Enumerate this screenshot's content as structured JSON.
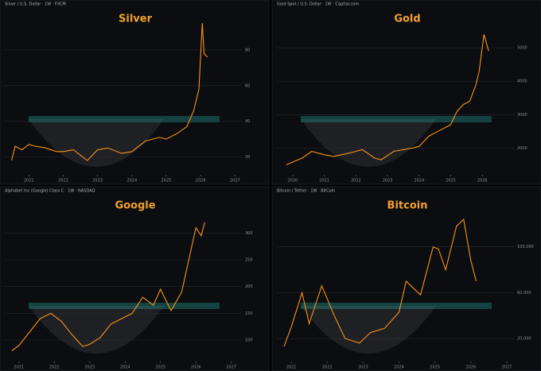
{
  "chart_data": [
    {
      "type": "line",
      "title": "Silver",
      "subtitle": "Silver / U.S. Dollar · 1W · FXCM",
      "color": "#f7931a",
      "x": [
        2020.5,
        2020.6,
        2020.8,
        2021.0,
        2021.2,
        2021.5,
        2021.8,
        2022.0,
        2022.3,
        2022.7,
        2023.0,
        2023.3,
        2023.7,
        2024.0,
        2024.4,
        2024.8,
        2025.0,
        2025.3,
        2025.6,
        2025.8,
        2025.95,
        2026.05,
        2026.1,
        2026.2
      ],
      "values": [
        18,
        26,
        24,
        27,
        26,
        25,
        23,
        23,
        24,
        18,
        24,
        25,
        22,
        23,
        29,
        31,
        30,
        33,
        37,
        46,
        58,
        95,
        78,
        76
      ],
      "xlim": [
        2020.3,
        2027.2
      ],
      "xticks": [
        2021,
        2022,
        2023,
        2024,
        2025,
        2026,
        2027
      ],
      "ylim": [
        10,
        100
      ],
      "yticks": [
        20,
        40,
        60,
        80
      ]
    },
    {
      "type": "line",
      "title": "Gold",
      "subtitle": "Gold Spot / U.S. Dollar · 1W · Capital.com",
      "color": "#f7931a",
      "x": [
        2019.8,
        2020.3,
        2020.6,
        2021.0,
        2021.3,
        2021.8,
        2022.2,
        2022.6,
        2022.8,
        2023.2,
        2023.5,
        2023.8,
        2024.0,
        2024.3,
        2024.6,
        2024.9,
        2025.0,
        2025.2,
        2025.4,
        2025.6,
        2025.8,
        2025.9,
        2026.05,
        2026.2
      ],
      "values": [
        1500,
        1700,
        1900,
        1800,
        1750,
        1850,
        1950,
        1700,
        1650,
        1900,
        1950,
        2000,
        2050,
        2350,
        2500,
        2650,
        2700,
        3100,
        3300,
        3400,
        3900,
        4300,
        5400,
        4900
      ],
      "xlim": [
        2019.5,
        2027
      ],
      "xticks": [
        2020,
        2021,
        2022,
        2023,
        2024,
        2025,
        2026
      ],
      "ylim": [
        1200,
        6000
      ],
      "yticks": [
        2000,
        3000,
        4000,
        5000
      ]
    },
    {
      "type": "line",
      "title": "Google",
      "subtitle": "Alphabet Inc (Google) Class C · 1W · NASDAQ",
      "color": "#f7931a",
      "x": [
        2020.8,
        2021.0,
        2021.3,
        2021.6,
        2021.9,
        2022.2,
        2022.5,
        2022.8,
        2023.0,
        2023.3,
        2023.6,
        2023.9,
        2024.2,
        2024.5,
        2024.8,
        2025.0,
        2025.3,
        2025.6,
        2025.8,
        2026.0,
        2026.15,
        2026.25
      ],
      "values": [
        80,
        90,
        115,
        140,
        150,
        135,
        110,
        88,
        92,
        105,
        130,
        140,
        150,
        180,
        165,
        195,
        155,
        190,
        250,
        310,
        295,
        320
      ],
      "xlim": [
        2020.6,
        2027.3
      ],
      "xticks": [
        2021,
        2022,
        2023,
        2024,
        2025,
        2026,
        2027
      ],
      "ylim": [
        60,
        360
      ],
      "yticks": [
        100,
        150,
        200,
        250,
        300
      ]
    },
    {
      "type": "line",
      "title": "Bitcoin",
      "subtitle": "Bitcoin / Tether · 1W · BitCoin",
      "color": "#f7931a",
      "x": [
        2020.8,
        2021.0,
        2021.3,
        2021.5,
        2021.85,
        2022.2,
        2022.5,
        2022.9,
        2023.2,
        2023.6,
        2024.0,
        2024.2,
        2024.6,
        2024.95,
        2025.1,
        2025.3,
        2025.6,
        2025.8,
        2026.0,
        2026.15
      ],
      "values": [
        13000,
        30000,
        60000,
        33000,
        66000,
        40000,
        20000,
        16000,
        25000,
        29000,
        43000,
        70000,
        58000,
        100000,
        98000,
        80000,
        118000,
        124000,
        88000,
        70000
      ],
      "xlim": [
        2020.6,
        2027.2
      ],
      "xticks": [
        2021,
        2022,
        2023,
        2024,
        2025,
        2026,
        2027
      ],
      "ylim": [
        0,
        140000
      ],
      "yticks": [
        {
          "value": 20000,
          "label": "20,000"
        },
        {
          "value": 60000,
          "label": "60,000"
        },
        {
          "value": 100000,
          "label": "100,000"
        }
      ]
    }
  ]
}
